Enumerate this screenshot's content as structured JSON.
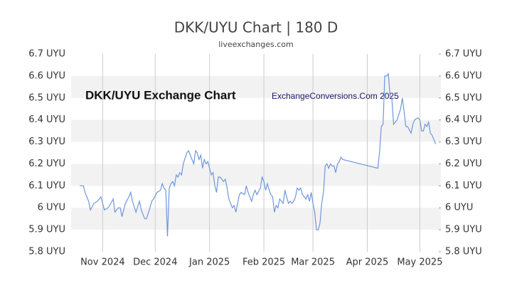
{
  "chart_data": {
    "type": "line",
    "title": "DKK/UYU Chart | 180 D",
    "subtitle": "liveexchanges.com",
    "annotations": [
      "DKK/UYU Exchange Chart",
      "ExchangeConversions.Com 2025"
    ],
    "x": [
      -13,
      -11,
      -10,
      -8,
      -7,
      -5,
      -3,
      -1,
      0,
      1,
      3,
      4,
      6,
      7,
      9,
      10,
      11,
      13,
      15,
      16,
      17,
      19,
      21,
      22,
      24,
      25,
      27,
      28,
      29,
      31,
      33,
      34,
      35,
      36,
      37,
      38,
      39,
      40,
      41,
      42,
      43,
      44,
      45,
      46,
      48,
      49,
      50,
      52,
      53,
      54,
      55,
      56,
      57,
      58,
      59,
      60,
      62,
      63,
      64,
      65,
      66,
      67,
      69,
      70,
      71,
      72,
      74,
      75,
      76,
      78,
      79,
      81,
      82,
      83,
      85,
      86,
      87,
      88,
      90,
      91,
      92,
      93,
      94,
      95,
      96,
      97,
      98,
      99,
      100,
      101,
      102,
      103,
      104,
      105,
      106,
      107,
      108,
      109,
      110,
      111,
      112,
      113,
      114,
      115,
      116,
      117,
      118,
      119,
      120,
      121,
      122,
      123,
      124,
      125,
      126,
      127,
      128,
      129,
      130,
      131,
      132,
      133,
      134,
      135,
      136,
      137,
      157,
      158,
      159,
      160,
      161,
      162,
      163,
      164,
      165,
      166,
      167,
      168,
      170,
      171,
      172,
      173,
      174,
      176,
      177,
      178,
      180,
      181,
      182,
      183,
      184,
      185,
      186,
      187,
      188,
      190
    ],
    "series": [
      {
        "name": "DKK/UYU",
        "color": "#6f96dc",
        "values": [
          6.1,
          6.1,
          6.07,
          6.03,
          5.99,
          6.02,
          6.03,
          6.05,
          6.02,
          5.99,
          6.0,
          6.01,
          6.04,
          5.98,
          6.0,
          6.0,
          5.96,
          6.02,
          6.05,
          6.07,
          6.03,
          5.98,
          6.03,
          5.99,
          5.95,
          5.95,
          6.0,
          6.03,
          6.04,
          6.07,
          6.08,
          6.11,
          6.09,
          6.08,
          5.87,
          6.09,
          6.11,
          6.12,
          6.1,
          6.15,
          6.14,
          6.16,
          6.15,
          6.2,
          6.25,
          6.26,
          6.24,
          6.2,
          6.26,
          6.25,
          6.22,
          6.24,
          6.18,
          6.22,
          6.2,
          6.21,
          6.15,
          6.16,
          6.1,
          6.07,
          6.14,
          6.14,
          6.12,
          6.13,
          6.09,
          6.04,
          6.0,
          6.01,
          5.98,
          6.06,
          6.07,
          6.06,
          6.1,
          6.07,
          6.03,
          6.06,
          6.08,
          6.06,
          6.09,
          6.14,
          6.12,
          6.08,
          6.11,
          6.08,
          6.06,
          6.05,
          5.98,
          6.01,
          6.0,
          6.04,
          6.03,
          6.02,
          6.08,
          6.05,
          6.02,
          6.03,
          6.02,
          6.03,
          6.05,
          6.09,
          6.08,
          6.09,
          6.06,
          6.05,
          6.04,
          6.06,
          6.03,
          6.07,
          6.02,
          5.98,
          5.9,
          5.9,
          5.93,
          6.02,
          6.07,
          6.19,
          6.2,
          6.18,
          6.2,
          6.19,
          6.19,
          6.16,
          6.2,
          6.21,
          6.23,
          6.22,
          6.18,
          6.25,
          6.37,
          6.38,
          6.6,
          6.6,
          6.61,
          6.51,
          6.5,
          6.38,
          6.39,
          6.4,
          6.45,
          6.5,
          6.44,
          6.37,
          6.37,
          6.34,
          6.38,
          6.4,
          6.41,
          6.4,
          6.35,
          6.35,
          6.38,
          6.37,
          6.39,
          6.34,
          6.33,
          6.29
        ]
      }
    ],
    "xlim": [
      -18,
      193
    ],
    "xticks": [
      {
        "value": 0,
        "label": "Nov 2024"
      },
      {
        "value": 30,
        "label": "Dec 2024"
      },
      {
        "value": 61,
        "label": "Jan 2025"
      },
      {
        "value": 92,
        "label": "Feb 2025"
      },
      {
        "value": 120,
        "label": "Mar 2025"
      },
      {
        "value": 151,
        "label": "Apr 2025"
      },
      {
        "value": 181,
        "label": "May 2025"
      }
    ],
    "ylim": [
      5.8,
      6.7
    ],
    "yticks": [
      {
        "value": 5.8,
        "label": "5.8 UYU"
      },
      {
        "value": 5.9,
        "label": "5.9 UYU"
      },
      {
        "value": 6.0,
        "label": "6 UYU"
      },
      {
        "value": 6.1,
        "label": "6.1 UYU"
      },
      {
        "value": 6.2,
        "label": "6.2 UYU"
      },
      {
        "value": 6.3,
        "label": "6.3 UYU"
      },
      {
        "value": 6.4,
        "label": "6.4 UYU"
      },
      {
        "value": 6.5,
        "label": "6.5 UYU"
      },
      {
        "value": 6.6,
        "label": "6.6 UYU"
      },
      {
        "value": 6.7,
        "label": "6.7 UYU"
      }
    ],
    "grid": true
  }
}
